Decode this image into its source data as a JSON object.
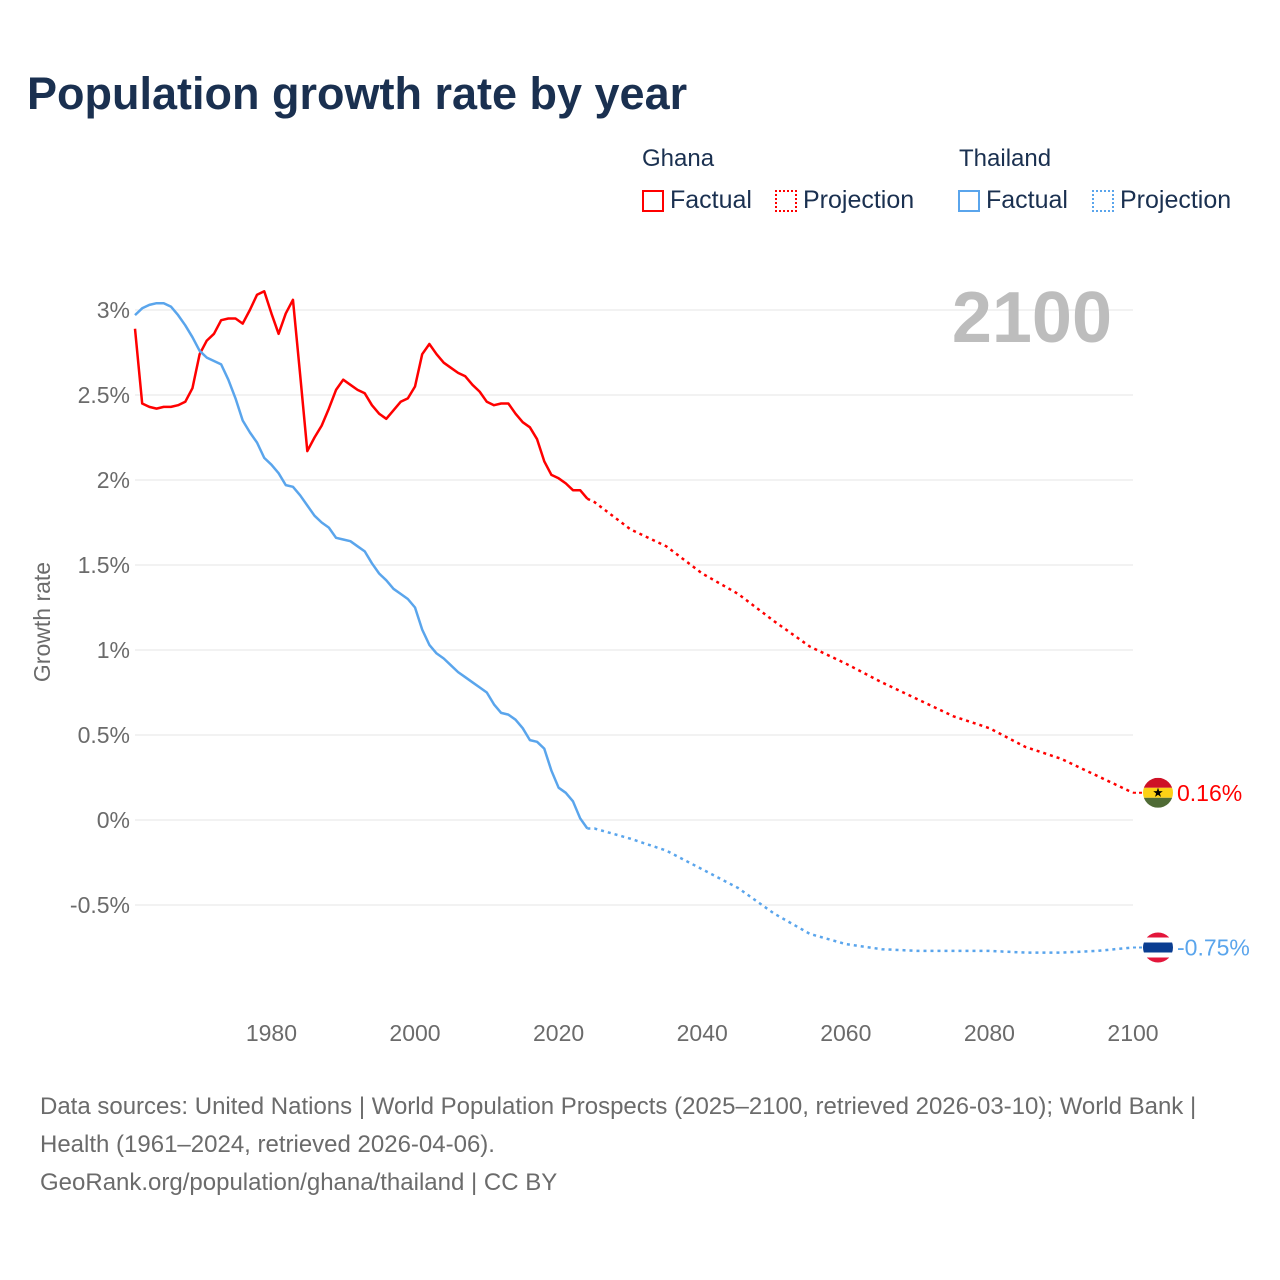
{
  "title": "Population growth rate by year",
  "legend": {
    "groups": [
      {
        "name": "Ghana",
        "color": "#ff0000",
        "factual": "Factual",
        "projection": "Projection"
      },
      {
        "name": "Thailand",
        "color": "#5aa5ec",
        "factual": "Factual",
        "projection": "Projection"
      }
    ]
  },
  "year_label": "2100",
  "footer": {
    "sources": "Data sources: United Nations | World Population Prospects (2025–2100, retrieved 2026-03-10); World Bank | Health (1961–2024, retrieved 2026-04-06).",
    "credit": "GeoRank.org/population/ghana/thailand | CC BY"
  },
  "chart_data": {
    "type": "line",
    "title": "Population growth rate by year",
    "xlabel": "",
    "ylabel": "Growth rate",
    "xlim": [
      1961,
      2100
    ],
    "ylim": [
      -0.9,
      3.2
    ],
    "x_ticks": [
      1980,
      2000,
      2020,
      2040,
      2060,
      2080,
      2100
    ],
    "y_ticks": [
      -0.5,
      0,
      0.5,
      1,
      1.5,
      2,
      2.5,
      3
    ],
    "y_tick_labels": [
      "-0.5%",
      "0%",
      "0.5%",
      "1%",
      "1.5%",
      "2%",
      "2.5%",
      "3%"
    ],
    "grid": true,
    "legend": "top-right",
    "series": [
      {
        "name": "Ghana",
        "color": "#ff0000",
        "end_label": "0.16%",
        "factual": {
          "start_year": 1961,
          "values": [
            2.89,
            2.45,
            2.43,
            2.42,
            2.43,
            2.43,
            2.44,
            2.46,
            2.54,
            2.74,
            2.82,
            2.86,
            2.94,
            2.95,
            2.95,
            2.92,
            3.0,
            3.09,
            3.11,
            2.98,
            2.86,
            2.98,
            3.06,
            2.62,
            2.17,
            2.25,
            2.32,
            2.42,
            2.53,
            2.59,
            2.56,
            2.53,
            2.51,
            2.44,
            2.39,
            2.36,
            2.41,
            2.46,
            2.48,
            2.55,
            2.74,
            2.8,
            2.74,
            2.69,
            2.66,
            2.63,
            2.61,
            2.56,
            2.52,
            2.46,
            2.44,
            2.45,
            2.45,
            2.39,
            2.34,
            2.31,
            2.24,
            2.11,
            2.03,
            2.01,
            1.98,
            1.94,
            1.94,
            1.89
          ]
        },
        "projection": {
          "x": [
            2024,
            2025,
            2030,
            2035,
            2040,
            2045,
            2050,
            2055,
            2060,
            2065,
            2070,
            2075,
            2080,
            2085,
            2090,
            2095,
            2100
          ],
          "values": [
            1.89,
            1.87,
            1.71,
            1.61,
            1.45,
            1.33,
            1.17,
            1.02,
            0.92,
            0.81,
            0.71,
            0.61,
            0.54,
            0.43,
            0.36,
            0.26,
            0.16
          ]
        }
      },
      {
        "name": "Thailand",
        "color": "#5aa5ec",
        "end_label": "-0.75%",
        "factual": {
          "start_year": 1961,
          "values": [
            2.97,
            3.01,
            3.03,
            3.04,
            3.04,
            3.02,
            2.97,
            2.91,
            2.84,
            2.76,
            2.72,
            2.7,
            2.68,
            2.59,
            2.48,
            2.35,
            2.28,
            2.22,
            2.13,
            2.09,
            2.04,
            1.97,
            1.96,
            1.91,
            1.85,
            1.79,
            1.75,
            1.72,
            1.66,
            1.65,
            1.64,
            1.61,
            1.58,
            1.51,
            1.45,
            1.41,
            1.36,
            1.33,
            1.3,
            1.25,
            1.12,
            1.03,
            0.98,
            0.95,
            0.91,
            0.87,
            0.84,
            0.81,
            0.78,
            0.75,
            0.68,
            0.63,
            0.62,
            0.59,
            0.54,
            0.47,
            0.46,
            0.42,
            0.29,
            0.19,
            0.16,
            0.11,
            0.01,
            -0.05
          ]
        },
        "projection": {
          "x": [
            2024,
            2025,
            2030,
            2035,
            2040,
            2045,
            2050,
            2055,
            2060,
            2065,
            2070,
            2075,
            2080,
            2085,
            2090,
            2095,
            2100
          ],
          "values": [
            -0.05,
            -0.05,
            -0.11,
            -0.18,
            -0.29,
            -0.4,
            -0.55,
            -0.67,
            -0.73,
            -0.76,
            -0.77,
            -0.77,
            -0.77,
            -0.78,
            -0.78,
            -0.77,
            -0.75
          ]
        }
      }
    ]
  }
}
